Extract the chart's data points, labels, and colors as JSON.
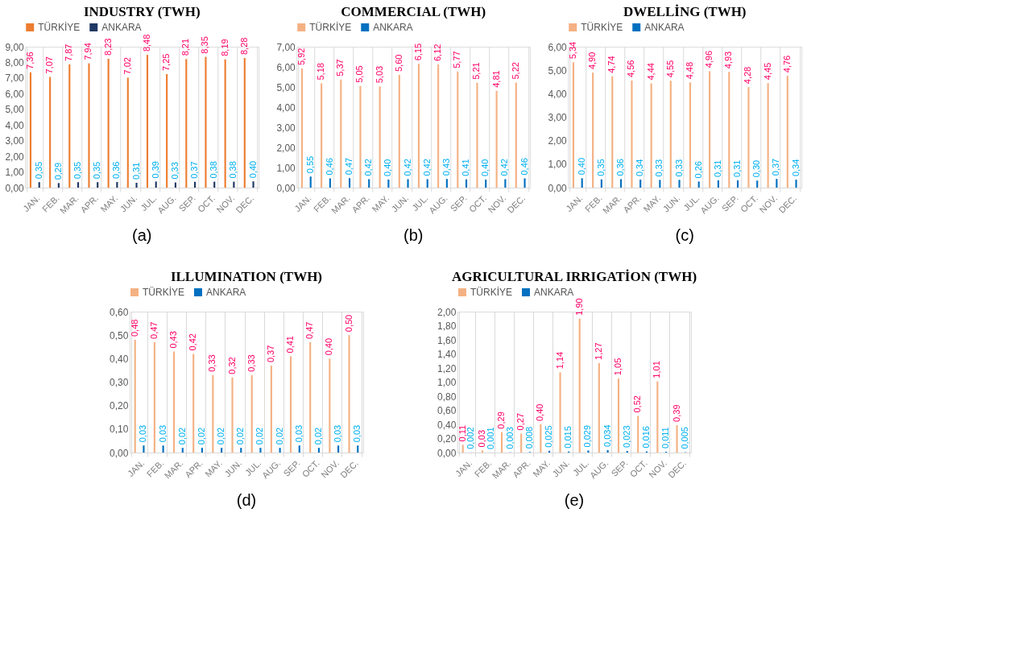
{
  "chart_data": [
    {
      "type": "bar",
      "title": "INDUSTRY (TWH)",
      "categories": [
        "JAN.",
        "FEB.",
        "MAR.",
        "APR.",
        "MAY.",
        "JUN.",
        "JUL.",
        "AUG.",
        "SEP.",
        "OCT.",
        "NOV.",
        "DEC."
      ],
      "series": [
        {
          "name": "TÜRKİYE",
          "color": "#ed7d31",
          "values": [
            7.36,
            7.07,
            7.87,
            7.94,
            8.23,
            7.02,
            8.48,
            7.25,
            8.21,
            8.35,
            8.19,
            8.28
          ],
          "value_labels": [
            "7,36",
            "7,07",
            "7,87",
            "7,94",
            "8,23",
            "7,02",
            "8,48",
            "7,25",
            "8,21",
            "8,35",
            "8,19",
            "8,28"
          ]
        },
        {
          "name": "ANKARA",
          "color": "#1f3864",
          "values": [
            0.35,
            0.29,
            0.35,
            0.35,
            0.36,
            0.31,
            0.39,
            0.33,
            0.37,
            0.38,
            0.38,
            0.4
          ],
          "value_labels": [
            "0,35",
            "0,29",
            "0,35",
            "0,35",
            "0,36",
            "0,31",
            "0,39",
            "0,33",
            "0,37",
            "0,38",
            "0,38",
            "0,40"
          ]
        }
      ],
      "ylim": [
        0,
        9
      ],
      "yticks": [
        {
          "value": 0,
          "label": "0,00"
        },
        {
          "value": 1,
          "label": "1,00"
        },
        {
          "value": 2,
          "label": "2,00"
        },
        {
          "value": 3,
          "label": "3,00"
        },
        {
          "value": 4,
          "label": "4,00"
        },
        {
          "value": 5,
          "label": "5,00"
        },
        {
          "value": 6,
          "label": "6,00"
        },
        {
          "value": 7,
          "label": "7,00"
        },
        {
          "value": 8,
          "label": "8,00"
        },
        {
          "value": 9,
          "label": "9,00"
        }
      ],
      "grid": "x",
      "legend": "top",
      "annotations": [
        "(a)"
      ]
    },
    {
      "type": "bar",
      "title": "COMMERCIAL (TWH)",
      "categories": [
        "JAN.",
        "FEB.",
        "MAR.",
        "APR.",
        "MAY.",
        "JUN.",
        "JUL.",
        "AUG.",
        "SEP.",
        "OCT.",
        "NOV.",
        "DEC."
      ],
      "series": [
        {
          "name": "TÜRKİYE",
          "color": "#f4b183",
          "values": [
            5.92,
            5.18,
            5.37,
            5.05,
            5.03,
            5.6,
            6.15,
            6.12,
            5.77,
            5.21,
            4.81,
            5.22
          ],
          "value_labels": [
            "5,92",
            "5,18",
            "5,37",
            "5,05",
            "5,03",
            "5,60",
            "6,15",
            "6,12",
            "5,77",
            "5,21",
            "4,81",
            "5,22"
          ]
        },
        {
          "name": "ANKARA",
          "color": "#0070c0",
          "values": [
            0.55,
            0.46,
            0.47,
            0.42,
            0.4,
            0.42,
            0.42,
            0.43,
            0.41,
            0.4,
            0.42,
            0.46
          ],
          "value_labels": [
            "0,55",
            "0,46",
            "0,47",
            "0,42",
            "0,40",
            "0,42",
            "0,42",
            "0,43",
            "0,41",
            "0,40",
            "0,42",
            "0,46"
          ]
        }
      ],
      "ylim": [
        0,
        7
      ],
      "yticks": [
        {
          "value": 0,
          "label": "0,00"
        },
        {
          "value": 1,
          "label": "1,00"
        },
        {
          "value": 2,
          "label": "2,00"
        },
        {
          "value": 3,
          "label": "3,00"
        },
        {
          "value": 4,
          "label": "4,00"
        },
        {
          "value": 5,
          "label": "5,00"
        },
        {
          "value": 6,
          "label": "6,00"
        },
        {
          "value": 7,
          "label": "7,00"
        }
      ],
      "grid": "x",
      "legend": "top",
      "annotations": [
        "(b)"
      ]
    },
    {
      "type": "bar",
      "title": "DWELLİNG (TWH)",
      "categories": [
        "JAN.",
        "FEB.",
        "MAR.",
        "APR.",
        "MAY.",
        "JUN.",
        "JUL.",
        "AUG.",
        "SEP.",
        "OCT.",
        "NOV.",
        "DEC."
      ],
      "series": [
        {
          "name": "TÜRKİYE",
          "color": "#f4b183",
          "values": [
            5.34,
            4.9,
            4.74,
            4.56,
            4.44,
            4.55,
            4.48,
            4.96,
            4.93,
            4.28,
            4.45,
            4.76
          ],
          "value_labels": [
            "5,34",
            "4,90",
            "4,74",
            "4,56",
            "4,44",
            "4,55",
            "4,48",
            "4,96",
            "4,93",
            "4,28",
            "4,45",
            "4,76"
          ]
        },
        {
          "name": "ANKARA",
          "color": "#0070c0",
          "values": [
            0.4,
            0.35,
            0.36,
            0.34,
            0.33,
            0.33,
            0.26,
            0.31,
            0.31,
            0.3,
            0.37,
            0.34
          ],
          "value_labels": [
            "0,40",
            "0,35",
            "0,36",
            "0,34",
            "0,33",
            "0,33",
            "0,26",
            "0,31",
            "0,31",
            "0,30",
            "0,37",
            "0,34"
          ]
        }
      ],
      "ylim": [
        0,
        6
      ],
      "yticks": [
        {
          "value": 0,
          "label": "0,00"
        },
        {
          "value": 1,
          "label": "1,00"
        },
        {
          "value": 2,
          "label": "2,00"
        },
        {
          "value": 3,
          "label": "3,00"
        },
        {
          "value": 4,
          "label": "4,00"
        },
        {
          "value": 5,
          "label": "5,00"
        },
        {
          "value": 6,
          "label": "6,00"
        }
      ],
      "grid": "x",
      "legend": "top",
      "annotations": [
        "(c)"
      ]
    },
    {
      "type": "bar",
      "title": "ILLUMINATION (TWH)",
      "categories": [
        "JAN.",
        "FEB.",
        "MAR.",
        "APR.",
        "MAY.",
        "JUN.",
        "JUL.",
        "AUG.",
        "SEP.",
        "OCT.",
        "NOV.",
        "DEC."
      ],
      "series": [
        {
          "name": "TÜRKİYE",
          "color": "#f4b183",
          "values": [
            0.48,
            0.47,
            0.43,
            0.42,
            0.33,
            0.32,
            0.33,
            0.37,
            0.41,
            0.47,
            0.4,
            0.5
          ],
          "value_labels": [
            "0,48",
            "0,47",
            "0,43",
            "0,42",
            "0,33",
            "0,32",
            "0,33",
            "0,37",
            "0,41",
            "0,47",
            "0,40",
            "0,50"
          ]
        },
        {
          "name": "ANKARA",
          "color": "#0070c0",
          "values": [
            0.03,
            0.03,
            0.02,
            0.02,
            0.02,
            0.02,
            0.02,
            0.02,
            0.03,
            0.02,
            0.03,
            0.03
          ],
          "value_labels": [
            "0,03",
            "0,03",
            "0,02",
            "0,02",
            "0,02",
            "0,02",
            "0,02",
            "0,02",
            "0,03",
            "0,02",
            "0,03",
            "0,03"
          ]
        }
      ],
      "ylim": [
        0,
        0.6
      ],
      "yticks": [
        {
          "value": 0,
          "label": "0,00"
        },
        {
          "value": 0.1,
          "label": "0,10"
        },
        {
          "value": 0.2,
          "label": "0,20"
        },
        {
          "value": 0.3,
          "label": "0,30"
        },
        {
          "value": 0.4,
          "label": "0,40"
        },
        {
          "value": 0.5,
          "label": "0,50"
        },
        {
          "value": 0.6,
          "label": "0,60"
        }
      ],
      "grid": "x",
      "legend": "top",
      "annotations": [
        "(d)"
      ]
    },
    {
      "type": "bar",
      "title": "AGRICULTURAL IRRIGATİON (TWH)",
      "categories": [
        "JAN.",
        "FEB.",
        "MAR.",
        "APR.",
        "MAY.",
        "JUN.",
        "JUL.",
        "AUG.",
        "SEP.",
        "OCT.",
        "NOV.",
        "DEC."
      ],
      "series": [
        {
          "name": "TÜRKİYE",
          "color": "#f4b183",
          "values": [
            0.11,
            0.03,
            0.29,
            0.27,
            0.4,
            1.14,
            1.9,
            1.27,
            1.05,
            0.52,
            1.01,
            0.39
          ],
          "value_labels": [
            "0,11",
            "0,03",
            "0,29",
            "0,27",
            "0,40",
            "1,14",
            "1,90",
            "1,27",
            "1,05",
            "0,52",
            "1,01",
            "0,39"
          ]
        },
        {
          "name": "ANKARA",
          "color": "#0070c0",
          "values": [
            0.002,
            0.001,
            0.003,
            0.008,
            0.025,
            0.015,
            0.029,
            0.034,
            0.023,
            0.016,
            0.011,
            0.005
          ],
          "value_labels": [
            "0,002",
            "0,001",
            "0,003",
            "0,008",
            "0,025",
            "0,015",
            "0,029",
            "0,034",
            "0,023",
            "0,016",
            "0,011",
            "0,005"
          ]
        }
      ],
      "ylim": [
        0,
        2
      ],
      "yticks": [
        {
          "value": 0,
          "label": "0,00"
        },
        {
          "value": 0.2,
          "label": "0,20"
        },
        {
          "value": 0.4,
          "label": "0,40"
        },
        {
          "value": 0.6,
          "label": "0,60"
        },
        {
          "value": 0.8,
          "label": "0,80"
        },
        {
          "value": 1,
          "label": "1,00"
        },
        {
          "value": 1.2,
          "label": "1,20"
        },
        {
          "value": 1.4,
          "label": "1,40"
        },
        {
          "value": 1.6,
          "label": "1,60"
        },
        {
          "value": 1.8,
          "label": "1,80"
        },
        {
          "value": 2,
          "label": "2,00"
        }
      ],
      "grid": "x",
      "legend": "top",
      "annotations": [
        "(e)"
      ]
    }
  ]
}
